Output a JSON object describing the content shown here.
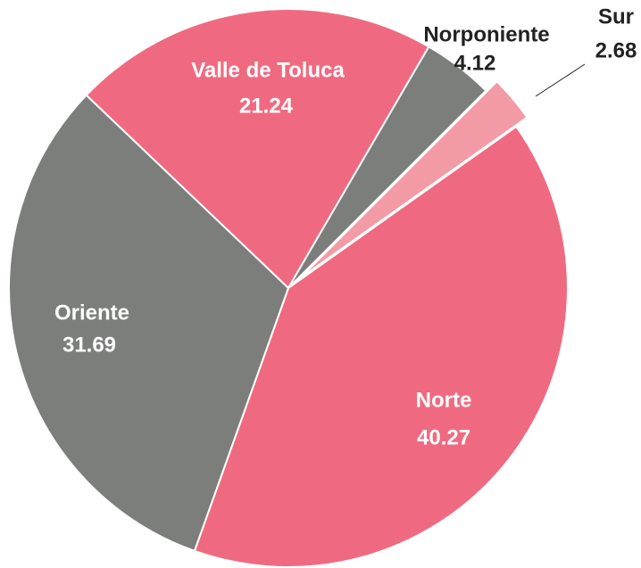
{
  "chart_data": {
    "type": "pie",
    "categories": [
      "Sur",
      "Norte",
      "Oriente",
      "Valle de Toluca",
      "Norponiente"
    ],
    "values": [
      2.68,
      40.27,
      31.69,
      21.24,
      4.12
    ],
    "colors": [
      "#f29ba6",
      "#ef6a80",
      "#7c7e7c",
      "#ef6a80",
      "#7c7e7c"
    ],
    "exploded": [
      "Sur"
    ]
  }
}
